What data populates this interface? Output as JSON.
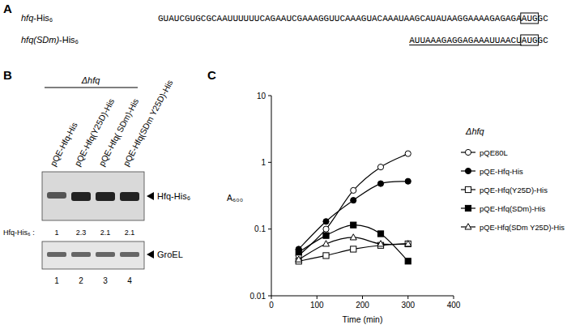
{
  "panel_a": {
    "label": "A",
    "rows": [
      {
        "name": "hfq-His₆",
        "segments": [
          {
            "text": "GUAUCGUGCGCAAUUUUUUCAGAAUCGAAAGGUUCAAAGUACAAAUAAGCAUAUAAGGAAAAGAGAGA"
          },
          {
            "text": "AUG",
            "style": "box"
          },
          {
            "text": "GC"
          }
        ]
      },
      {
        "name": "hfq(SDm)-His₆",
        "segments": [
          {
            "text": "AUUAAAGAGGAGAAAUUAACU",
            "style": "underline"
          },
          {
            "text": "AUG",
            "style": "box"
          },
          {
            "text": "GC"
          }
        ]
      }
    ]
  },
  "panel_b": {
    "label": "B",
    "strain": "Δhfq",
    "lanes": [
      "pQE-Hfq-His",
      "pQE-Hfq(Y25D)-His",
      "pQE-Hfq( SDm)-His",
      "pQE-Hfq(SDm Y25D)-His"
    ],
    "lane_numbers": [
      1,
      2,
      3,
      4
    ],
    "quant_label": "Hfq-His₆ :",
    "quant_values": [
      1,
      2.3,
      2.1,
      2.1
    ],
    "bands": [
      "Hfq-His₆",
      "GroEL"
    ]
  },
  "panel_c_label": "C",
  "chart_data": {
    "type": "line",
    "x_label": "Time (min)",
    "y_label": "A₆₀₀",
    "legend_title": "Δhfq",
    "legend": "right",
    "log": "y",
    "grid": false,
    "line_style": "smooth",
    "x": [
      60,
      120,
      180,
      240,
      300
    ],
    "xlim": [
      0,
      400
    ],
    "xticks": [
      0,
      100,
      200,
      300,
      400
    ],
    "ylim": [
      0.01,
      10
    ],
    "yticks": [
      0.01,
      0.1,
      1,
      10
    ],
    "series": [
      {
        "name": "pQE80L",
        "color": "#000000",
        "marker": "circle-open",
        "values": [
          0.04,
          0.1,
          0.38,
          0.85,
          1.35
        ]
      },
      {
        "name": "pQE-Hfq-His",
        "color": "#000000",
        "marker": "circle",
        "values": [
          0.05,
          0.13,
          0.27,
          0.48,
          0.52
        ]
      },
      {
        "name": "pQE-Hfq(Y25D)-His",
        "color": "#000000",
        "marker": "square-open",
        "values": [
          0.033,
          0.04,
          0.05,
          0.057,
          0.06
        ]
      },
      {
        "name": "pQE-Hfq(SDm)-His",
        "color": "#000000",
        "marker": "square",
        "values": [
          0.045,
          0.08,
          0.115,
          0.085,
          0.033
        ]
      },
      {
        "name": "pQE-Hfq(SDm Y25D)-His",
        "color": "#000000",
        "marker": "triangle-open",
        "values": [
          0.035,
          0.06,
          0.075,
          0.06,
          0.06
        ]
      }
    ]
  }
}
